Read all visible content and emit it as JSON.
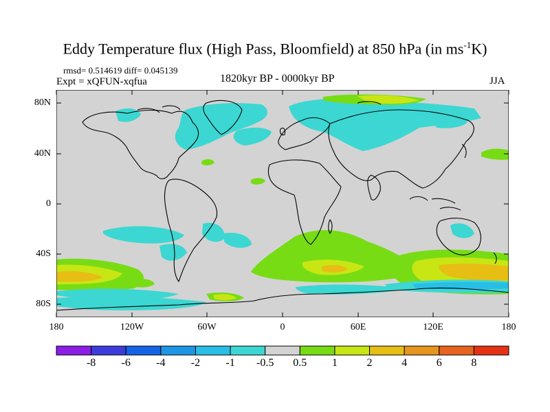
{
  "title": {
    "main": "Eddy Temperature flux (High Pass, Bloomfield) at 850 hPa (in ms",
    "sup": "-1",
    "tail": "K)"
  },
  "stats": "rmsd= 0.514619 diff= 0.045139",
  "experiment": "Expt = xQFUN-xqfua",
  "period": "1820kyr BP - 0000kyr BP",
  "season": "JJA",
  "map": {
    "background": "#d3d3d3",
    "lat_labels": [
      "80N",
      "40N",
      "0",
      "40S",
      "80S"
    ],
    "lon_labels": [
      "180",
      "120W",
      "60W",
      "0",
      "60E",
      "120E",
      "180"
    ]
  },
  "colorbar": {
    "colors": [
      "#8c1ee6",
      "#3c3cdc",
      "#1464e6",
      "#1e96e6",
      "#28bee6",
      "#3cd7d2",
      "#d3d3d3",
      "#78dc14",
      "#c8e614",
      "#e6be14",
      "#e6961e",
      "#e6641e",
      "#e63214"
    ],
    "labels": [
      "-8",
      "-6",
      "-4",
      "-2",
      "-1",
      "-0.5",
      "0.5",
      "1",
      "2",
      "4",
      "6",
      "8"
    ]
  }
}
